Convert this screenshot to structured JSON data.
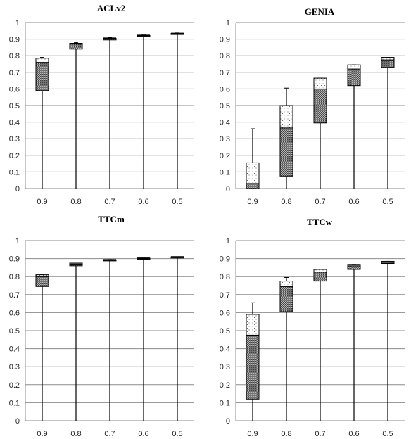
{
  "colors": {
    "grid": "#8c8c8c",
    "axis": "#8c8c8c",
    "box_outline": "#000000",
    "whisker": "#000000",
    "lower_box_pattern": "crosshatch-dark",
    "upper_box_pattern": "dots-light"
  },
  "chart_data": [
    {
      "type": "box",
      "title": "ACLv2",
      "categories": [
        "0.9",
        "0.8",
        "0.7",
        "0.6",
        "0.5"
      ],
      "ylim": [
        0,
        1
      ],
      "yticks": [
        "0",
        "0.1",
        "0.2",
        "0.3",
        "0.4",
        "0.5",
        "0.6",
        "0.7",
        "0.8",
        "0.9",
        "1"
      ],
      "grid": true,
      "boxes": [
        {
          "min": 0,
          "q1": 0.59,
          "median": 0.76,
          "q3": 0.785,
          "max": 0.79
        },
        {
          "min": 0,
          "q1": 0.84,
          "median": 0.87,
          "q3": 0.875,
          "max": 0.88
        },
        {
          "min": 0,
          "q1": 0.895,
          "median": 0.905,
          "q3": 0.905,
          "max": 0.91
        },
        {
          "min": 0,
          "q1": 0.918,
          "median": 0.922,
          "q3": 0.922,
          "max": 0.925
        },
        {
          "min": 0,
          "q1": 0.93,
          "median": 0.934,
          "q3": 0.934,
          "max": 0.937
        }
      ]
    },
    {
      "type": "box",
      "title": "GENIA",
      "categories": [
        "0.9",
        "0.8",
        "0.7",
        "0.6",
        "0.5"
      ],
      "ylim": [
        0,
        1
      ],
      "yticks": [
        "0",
        "0.1",
        "0.2",
        "0.3",
        "0.4",
        "0.5",
        "0.6",
        "0.7",
        "0.8",
        "0.9",
        "1"
      ],
      "grid": true,
      "boxes": [
        {
          "min": 0,
          "q1": 0.0,
          "median": 0.03,
          "q3": 0.155,
          "max": 0.36
        },
        {
          "min": 0,
          "q1": 0.075,
          "median": 0.365,
          "q3": 0.5,
          "max": 0.605
        },
        {
          "min": 0,
          "q1": 0.395,
          "median": 0.6,
          "q3": 0.665,
          "max": 0.665
        },
        {
          "min": 0,
          "q1": 0.62,
          "median": 0.72,
          "q3": 0.745,
          "max": 0.745
        },
        {
          "min": 0,
          "q1": 0.73,
          "median": 0.775,
          "q3": 0.79,
          "max": 0.79
        }
      ]
    },
    {
      "type": "box",
      "title": "TTCm",
      "categories": [
        "0.9",
        "0.8",
        "0.7",
        "0.6",
        "0.5"
      ],
      "ylim": [
        0,
        1
      ],
      "yticks": [
        "0",
        "0.1",
        "0.2",
        "0.3",
        "0.4",
        "0.5",
        "0.6",
        "0.7",
        "0.8",
        "0.9",
        "1"
      ],
      "grid": true,
      "boxes": [
        {
          "min": 0,
          "q1": 0.745,
          "median": 0.8,
          "q3": 0.81,
          "max": 0.81
        },
        {
          "min": 0,
          "q1": 0.86,
          "median": 0.87,
          "q3": 0.875,
          "max": 0.875
        },
        {
          "min": 0,
          "q1": 0.888,
          "median": 0.893,
          "q3": 0.893,
          "max": 0.895
        },
        {
          "min": 0,
          "q1": 0.9,
          "median": 0.902,
          "q3": 0.902,
          "max": 0.903
        },
        {
          "min": 0,
          "q1": 0.907,
          "median": 0.909,
          "q3": 0.909,
          "max": 0.91
        }
      ]
    },
    {
      "type": "box",
      "title": "TTCw",
      "categories": [
        "0.9",
        "0.8",
        "0.7",
        "0.6",
        "0.5"
      ],
      "ylim": [
        0,
        1
      ],
      "yticks": [
        "0",
        "0.1",
        "0.2",
        "0.3",
        "0.4",
        "0.5",
        "0.6",
        "0.7",
        "0.8",
        "0.9",
        "1"
      ],
      "grid": true,
      "boxes": [
        {
          "min": 0,
          "q1": 0.12,
          "median": 0.475,
          "q3": 0.59,
          "max": 0.655
        },
        {
          "min": 0,
          "q1": 0.605,
          "median": 0.745,
          "q3": 0.775,
          "max": 0.795
        },
        {
          "min": 0,
          "q1": 0.775,
          "median": 0.825,
          "q3": 0.84,
          "max": 0.84
        },
        {
          "min": 0,
          "q1": 0.84,
          "median": 0.86,
          "q3": 0.868,
          "max": 0.868
        },
        {
          "min": 0,
          "q1": 0.873,
          "median": 0.88,
          "q3": 0.885,
          "max": 0.885
        }
      ]
    }
  ]
}
